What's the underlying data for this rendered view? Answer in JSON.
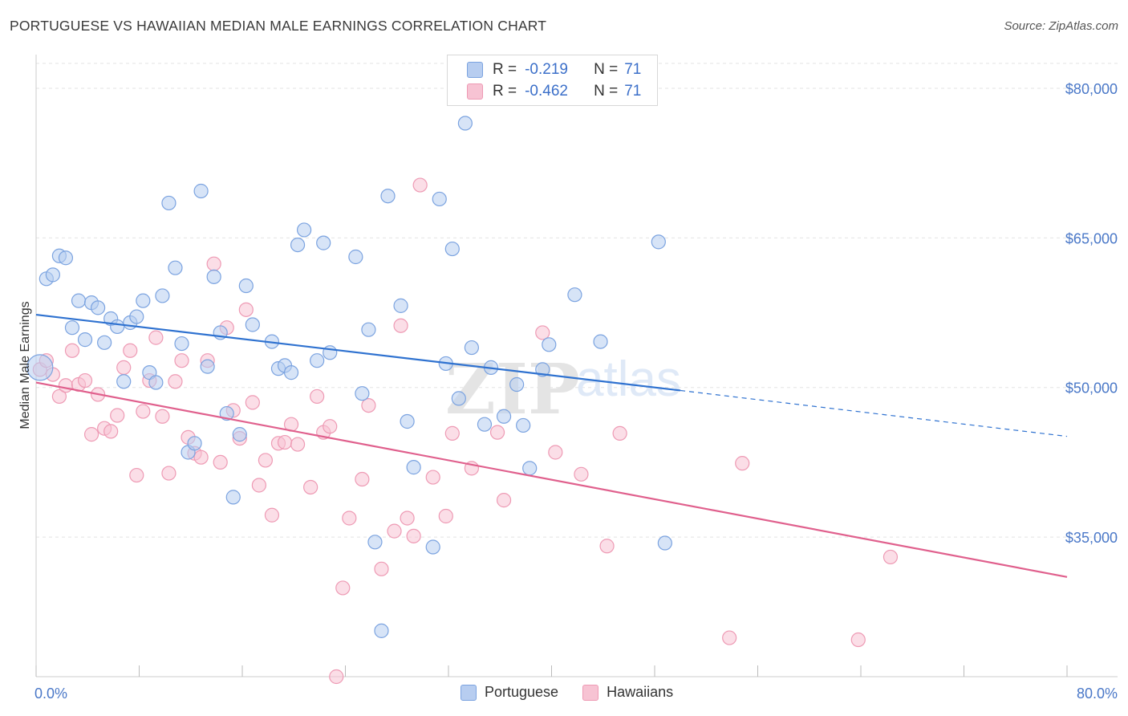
{
  "title": "PORTUGUESE VS HAWAIIAN MEDIAN MALE EARNINGS CORRELATION CHART",
  "source": "Source: ZipAtlas.com",
  "watermark": {
    "zip": "ZIP",
    "atlas": "atlas"
  },
  "legend_top": [
    {
      "swatch_fill": "#b7cdf0",
      "swatch_stroke": "#7ba3e0",
      "r_label": "R =",
      "r_value": "-0.219",
      "n_label": "N =",
      "n_value": "71"
    },
    {
      "swatch_fill": "#f7c3d3",
      "swatch_stroke": "#ee9ab4",
      "r_label": "R =",
      "r_value": "-0.462",
      "n_label": "N =",
      "n_value": "71"
    }
  ],
  "legend_bottom": [
    {
      "label": "Portuguese",
      "fill": "#b7cdf0",
      "stroke": "#7ba3e0"
    },
    {
      "label": "Hawaiians",
      "fill": "#f7c3d3",
      "stroke": "#ee9ab4"
    }
  ],
  "chart_data": {
    "type": "scatter",
    "title": "PORTUGUESE VS HAWAIIAN MEDIAN MALE EARNINGS CORRELATION CHART",
    "xlabel": "",
    "ylabel": "Median Male Earnings",
    "xlim": [
      0,
      80
    ],
    "ylim": [
      21000,
      82500
    ],
    "x_tick_labels": [
      "0.0%",
      "80.0%"
    ],
    "y_ticks": [
      35000,
      50000,
      65000,
      80000
    ],
    "y_tick_labels": [
      "$35,000",
      "$50,000",
      "$65,000",
      "$80,000"
    ],
    "grid": true,
    "legend_position": "top-center",
    "series": [
      {
        "name": "Portuguese",
        "color": "#7ba3e0",
        "fill": "#b7cdf0",
        "line_color": "#2f72d0",
        "trend": {
          "x_start": 0,
          "y_start": 57300,
          "x_end": 50,
          "y_end": 49700,
          "x_dash_end": 80,
          "y_dash_end": 45100
        },
        "points": [
          [
            0.3,
            52000
          ],
          [
            0.8,
            60900
          ],
          [
            1.3,
            61300
          ],
          [
            1.8,
            63200
          ],
          [
            2.3,
            63000
          ],
          [
            2.8,
            56000
          ],
          [
            3.3,
            58700
          ],
          [
            3.8,
            54800
          ],
          [
            4.3,
            58500
          ],
          [
            4.8,
            58000
          ],
          [
            5.3,
            54500
          ],
          [
            5.8,
            56900
          ],
          [
            6.3,
            56100
          ],
          [
            6.8,
            50600
          ],
          [
            7.3,
            56500
          ],
          [
            7.8,
            57100
          ],
          [
            8.3,
            58700
          ],
          [
            8.8,
            51500
          ],
          [
            9.3,
            50500
          ],
          [
            9.8,
            59200
          ],
          [
            10.3,
            68500
          ],
          [
            10.8,
            62000
          ],
          [
            11.3,
            54400
          ],
          [
            11.8,
            43500
          ],
          [
            12.3,
            44400
          ],
          [
            12.8,
            69700
          ],
          [
            13.3,
            52100
          ],
          [
            13.8,
            61100
          ],
          [
            14.3,
            55500
          ],
          [
            14.8,
            47400
          ],
          [
            15.3,
            39000
          ],
          [
            15.8,
            45300
          ],
          [
            16.3,
            60200
          ],
          [
            16.8,
            56300
          ],
          [
            18.3,
            54600
          ],
          [
            18.8,
            51900
          ],
          [
            19.3,
            52200
          ],
          [
            19.8,
            51500
          ],
          [
            20.3,
            64300
          ],
          [
            20.8,
            65800
          ],
          [
            21.8,
            52700
          ],
          [
            22.3,
            64500
          ],
          [
            22.8,
            53500
          ],
          [
            24.8,
            63100
          ],
          [
            25.3,
            49400
          ],
          [
            25.8,
            55800
          ],
          [
            26.3,
            34500
          ],
          [
            26.8,
            25600
          ],
          [
            27.3,
            69200
          ],
          [
            28.3,
            58200
          ],
          [
            28.8,
            46600
          ],
          [
            29.3,
            42000
          ],
          [
            30.8,
            34000
          ],
          [
            31.3,
            68900
          ],
          [
            31.8,
            52400
          ],
          [
            32.3,
            63900
          ],
          [
            32.8,
            48900
          ],
          [
            33.3,
            76500
          ],
          [
            33.8,
            54000
          ],
          [
            34.8,
            46300
          ],
          [
            35.3,
            52000
          ],
          [
            36.3,
            47100
          ],
          [
            37.3,
            50300
          ],
          [
            37.8,
            46200
          ],
          [
            38.3,
            41900
          ],
          [
            39.3,
            51800
          ],
          [
            39.8,
            54300
          ],
          [
            41.8,
            59300
          ],
          [
            43.8,
            54600
          ],
          [
            48.3,
            64600
          ],
          [
            48.8,
            34400
          ]
        ]
      },
      {
        "name": "Hawaiians",
        "color": "#ee9ab4",
        "fill": "#f7c3d3",
        "line_color": "#e0608d",
        "trend": {
          "x_start": 0,
          "y_start": 50500,
          "x_end": 80,
          "y_end": 31000
        },
        "points": [
          [
            0.3,
            51800
          ],
          [
            0.8,
            52700
          ],
          [
            1.3,
            51300
          ],
          [
            1.8,
            49100
          ],
          [
            2.3,
            50200
          ],
          [
            2.8,
            53700
          ],
          [
            3.3,
            50300
          ],
          [
            3.8,
            50700
          ],
          [
            4.3,
            45300
          ],
          [
            4.8,
            49300
          ],
          [
            5.3,
            45900
          ],
          [
            5.8,
            45600
          ],
          [
            6.3,
            47200
          ],
          [
            6.8,
            52000
          ],
          [
            7.3,
            53700
          ],
          [
            7.8,
            41200
          ],
          [
            8.3,
            47600
          ],
          [
            8.8,
            50700
          ],
          [
            9.3,
            55000
          ],
          [
            9.8,
            47100
          ],
          [
            10.3,
            41400
          ],
          [
            10.8,
            50600
          ],
          [
            11.3,
            52700
          ],
          [
            11.8,
            45000
          ],
          [
            12.3,
            43400
          ],
          [
            12.8,
            43000
          ],
          [
            13.3,
            52700
          ],
          [
            13.8,
            62400
          ],
          [
            14.3,
            42500
          ],
          [
            14.8,
            56000
          ],
          [
            15.3,
            47700
          ],
          [
            15.8,
            44900
          ],
          [
            16.3,
            57800
          ],
          [
            16.8,
            48500
          ],
          [
            17.3,
            40200
          ],
          [
            17.8,
            42700
          ],
          [
            18.3,
            37200
          ],
          [
            18.8,
            44400
          ],
          [
            19.3,
            44500
          ],
          [
            19.8,
            46300
          ],
          [
            20.3,
            44300
          ],
          [
            21.3,
            40000
          ],
          [
            21.8,
            49100
          ],
          [
            22.3,
            45500
          ],
          [
            22.8,
            46100
          ],
          [
            23.3,
            21000
          ],
          [
            23.8,
            29900
          ],
          [
            24.3,
            36900
          ],
          [
            25.3,
            40800
          ],
          [
            25.8,
            48200
          ],
          [
            26.8,
            31800
          ],
          [
            27.8,
            35600
          ],
          [
            28.3,
            56200
          ],
          [
            28.8,
            36900
          ],
          [
            29.3,
            35100
          ],
          [
            29.8,
            70300
          ],
          [
            30.8,
            41000
          ],
          [
            31.8,
            37100
          ],
          [
            32.3,
            45400
          ],
          [
            33.8,
            41900
          ],
          [
            35.8,
            45500
          ],
          [
            36.3,
            38700
          ],
          [
            39.3,
            55500
          ],
          [
            40.3,
            43500
          ],
          [
            42.3,
            41300
          ],
          [
            44.3,
            34100
          ],
          [
            45.3,
            45400
          ],
          [
            53.8,
            24900
          ],
          [
            54.8,
            42400
          ],
          [
            63.8,
            24700
          ],
          [
            66.3,
            33000
          ]
        ]
      }
    ]
  }
}
